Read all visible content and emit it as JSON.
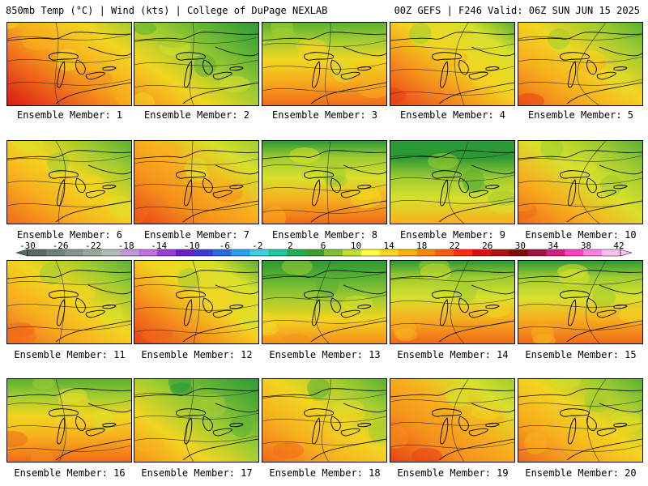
{
  "header": {
    "left": "850mb Temp (°C) | Wind (kts) | College of DuPage NEXLAB",
    "right": "00Z GEFS | F246 Valid: 06Z SUN JUN 15 2025"
  },
  "panel_label_prefix": "Ensemble Member: ",
  "members": [
    {
      "label": "Ensemble Member: 1",
      "warmth": 0.78,
      "cool_corner": "ne"
    },
    {
      "label": "Ensemble Member: 2",
      "warmth": 0.45,
      "cool_corner": "ne"
    },
    {
      "label": "Ensemble Member: 3",
      "warmth": 0.62,
      "cool_corner": "n"
    },
    {
      "label": "Ensemble Member: 4",
      "warmth": 0.66,
      "cool_corner": "ne"
    },
    {
      "label": "Ensemble Member: 5",
      "warmth": 0.64,
      "cool_corner": "ne"
    },
    {
      "label": "Ensemble Member: 6",
      "warmth": 0.62,
      "cool_corner": "ne"
    },
    {
      "label": "Ensemble Member: 7",
      "warmth": 0.74,
      "cool_corner": "ne"
    },
    {
      "label": "Ensemble Member: 8",
      "warmth": 0.55,
      "cool_corner": "n"
    },
    {
      "label": "Ensemble Member: 9",
      "warmth": 0.4,
      "cool_corner": "n"
    },
    {
      "label": "Ensemble Member: 10",
      "warmth": 0.58,
      "cool_corner": "ne"
    },
    {
      "label": "Ensemble Member: 11",
      "warmth": 0.6,
      "cool_corner": "ne"
    },
    {
      "label": "Ensemble Member: 12",
      "warmth": 0.66,
      "cool_corner": "ne"
    },
    {
      "label": "Ensemble Member: 13",
      "warmth": 0.46,
      "cool_corner": "n"
    },
    {
      "label": "Ensemble Member: 14",
      "warmth": 0.56,
      "cool_corner": "n"
    },
    {
      "label": "Ensemble Member: 15",
      "warmth": 0.56,
      "cool_corner": "n"
    },
    {
      "label": "Ensemble Member: 16",
      "warmth": 0.64,
      "cool_corner": "n"
    },
    {
      "label": "Ensemble Member: 17",
      "warmth": 0.46,
      "cool_corner": "ne"
    },
    {
      "label": "Ensemble Member: 18",
      "warmth": 0.6,
      "cool_corner": "ne"
    },
    {
      "label": "Ensemble Member: 19",
      "warmth": 0.72,
      "cool_corner": "ne"
    },
    {
      "label": "Ensemble Member: 20",
      "warmth": 0.6,
      "cool_corner": "ne"
    }
  ],
  "colorbar": {
    "labels": [
      "-30",
      "-26",
      "-22",
      "-18",
      "-14",
      "-10",
      "-6",
      "-2",
      "2",
      "6",
      "10",
      "14",
      "18",
      "22",
      "26",
      "30",
      "34",
      "38",
      "42"
    ],
    "colors": [
      "#5a6a62",
      "#6f8078",
      "#85948c",
      "#9aa8a0",
      "#b0bcb6",
      "#c39ad8",
      "#c070e0",
      "#9c3cd6",
      "#6a20c8",
      "#3c3cd8",
      "#2a6ae0",
      "#2aa0f0",
      "#3cd0e0",
      "#20c8a0",
      "#20b050",
      "#3aa030",
      "#80c030",
      "#c0e030",
      "#ffff40",
      "#ffd820",
      "#ffb000",
      "#ff8800",
      "#ff5a10",
      "#ff2a10",
      "#e01010",
      "#b01010",
      "#800808",
      "#a01040",
      "#d02080",
      "#ff40c0",
      "#ff80e0",
      "#ffc0f0"
    ]
  },
  "palette": [
    "#2a9a34",
    "#5ab034",
    "#a0cc30",
    "#d8e02c",
    "#f2d520",
    "#f7b01e",
    "#f6901c",
    "#f06a1a",
    "#e84016",
    "#d81a14"
  ]
}
